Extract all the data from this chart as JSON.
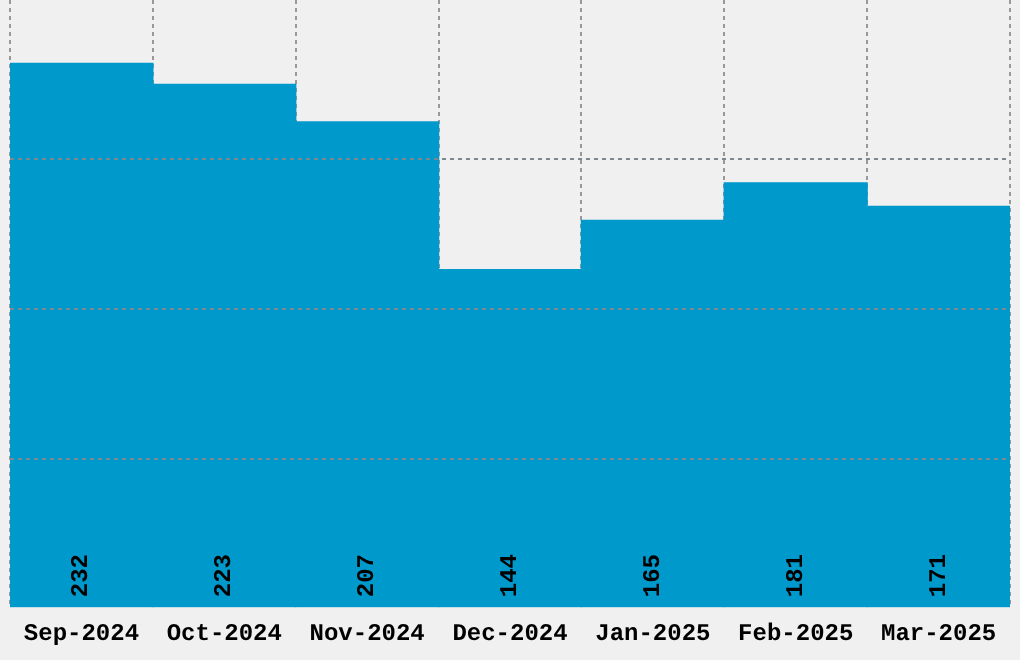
{
  "chart_data": {
    "type": "bar",
    "categories": [
      "Sep-2024",
      "Oct-2024",
      "Nov-2024",
      "Dec-2024",
      "Jan-2025",
      "Feb-2025",
      "Mar-2025"
    ],
    "values": [
      232,
      223,
      207,
      144,
      165,
      181,
      171
    ],
    "color": "#0099cc",
    "data_labels": true,
    "ylim": [
      0,
      259
    ],
    "yticks": [
      {
        "value": 64,
        "label": null
      },
      {
        "value": 128,
        "label": null
      },
      {
        "value": 192,
        "label": null
      }
    ],
    "grid": true,
    "tick_labels": "x"
  }
}
